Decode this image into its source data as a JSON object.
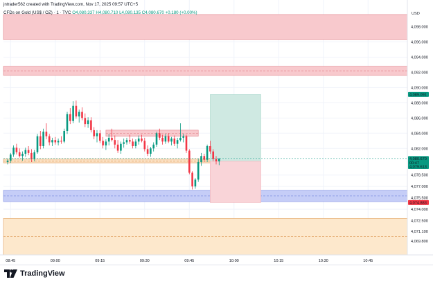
{
  "header": {
    "title": "jntrader562 created with TradingView.com, Nov 17, 2025 09:57 UTC+5"
  },
  "symbol_line": {
    "name": "CFDs on Gold (US$ / OZ) · 1 · TVC",
    "open": "O4,080.337",
    "high": "H4,080.710",
    "low": "L4,080.135",
    "close": "C4,080.670",
    "change": "+0.180 (+0.00%)"
  },
  "footer": {
    "logo_text": "TradingView"
  },
  "colors": {
    "up": "#089981",
    "down": "#f23645",
    "grid": "#f0f3fa",
    "axis_text": "#131722"
  },
  "chart_data": {
    "type": "candlestick",
    "currency": "USD",
    "y_ticks": [
      4098.0,
      4096.0,
      4094.0,
      4092.0,
      4090.0,
      4088.0,
      4086.0,
      4084.0,
      4082.0,
      4078.5,
      4077.0,
      4075.5,
      4074.0,
      4072.5,
      4071.1,
      4069.8
    ],
    "y_tick_labels": [
      "4,098.000",
      "4,096.000",
      "4,094.000",
      "4,092.000",
      "4,090.000",
      "4,088.000",
      "4,086.000",
      "4,084.000",
      "4,082.000",
      "4,078.500",
      "4,077.000",
      "4,075.500",
      "4,074.000",
      "4,072.500",
      "4,071.100",
      "4,069.800"
    ],
    "x_ticks": [
      "08:45",
      "09:00",
      "09:15",
      "09:30",
      "09:45",
      "10:00",
      "10:15",
      "10:30",
      "10:45"
    ],
    "x_start_time": "08:44",
    "ylim": [
      4068.0,
      4100.6
    ],
    "price_labels": [
      {
        "value": "4,089.091",
        "color": "#089981"
      },
      {
        "value": "4,080.670",
        "sub": "00:47",
        "color": "#089981"
      },
      {
        "value": "4,079.613",
        "color": "#089981"
      },
      {
        "value": "4,074.883",
        "color": "#f23645"
      }
    ],
    "zones": [
      {
        "name": "red-supply-zone",
        "top": 4099.6,
        "bottom": 4096.3,
        "color": "#f8c9cd",
        "border": "#e08088",
        "dashed_mid": null
      },
      {
        "name": "red-zone-2",
        "top": 4092.8,
        "bottom": 4091.6,
        "color": "#f8c9cd",
        "border": "#e08088",
        "dashed_mid": 4092.2
      },
      {
        "name": "orange-pivot-zone",
        "top": 4080.6,
        "bottom": 4080.1,
        "color": "#fbe0c2",
        "border": "#e0a060",
        "dashed_mid": 4080.35
      },
      {
        "name": "blue-demand-zone",
        "top": 4076.5,
        "bottom": 4075.0,
        "color": "#c5cdf7",
        "border": "#8090e0",
        "dashed_mid": 4075.75
      },
      {
        "name": "orange-demand-zone",
        "top": 4072.8,
        "bottom": 4068.0,
        "color": "#fde8cc",
        "border": "#e0a060",
        "dashed_mid": 4070.4
      },
      {
        "name": "pink-small-zone",
        "top": 4084.4,
        "bottom": 4083.6,
        "color": "#f8c9cd",
        "border": "#e08088",
        "dashed_mid": 4084.0
      }
    ],
    "position": {
      "entry": 4080.32,
      "target": 4089.091,
      "stop": 4074.883,
      "start_time": "09:52",
      "end_time": "10:09"
    },
    "candles": [
      [
        4080.2,
        4080.6,
        4079.9,
        4080.4
      ],
      [
        4080.4,
        4081.4,
        4080.1,
        4081.2
      ],
      [
        4081.2,
        4082.4,
        4080.9,
        4082.1
      ],
      [
        4082.1,
        4082.6,
        4081.2,
        4081.5
      ],
      [
        4081.5,
        4082.0,
        4080.8,
        4081.0
      ],
      [
        4081.0,
        4081.6,
        4080.4,
        4081.3
      ],
      [
        4081.3,
        4082.1,
        4080.9,
        4081.8
      ],
      [
        4081.8,
        4082.3,
        4081.1,
        4081.4
      ],
      [
        4081.4,
        4081.9,
        4080.2,
        4080.6
      ],
      [
        4080.6,
        4081.8,
        4080.3,
        4081.5
      ],
      [
        4081.5,
        4083.9,
        4081.3,
        4083.6
      ],
      [
        4083.6,
        4084.3,
        4081.9,
        4082.3
      ],
      [
        4082.3,
        4084.6,
        4082.0,
        4084.2
      ],
      [
        4084.2,
        4085.3,
        4083.2,
        4083.6
      ],
      [
        4083.6,
        4083.9,
        4082.4,
        4082.8
      ],
      [
        4082.8,
        4083.4,
        4082.3,
        4083.1
      ],
      [
        4083.1,
        4083.5,
        4082.5,
        4082.8
      ],
      [
        4082.8,
        4083.3,
        4082.4,
        4083.0
      ],
      [
        4083.0,
        4083.6,
        4082.6,
        4082.9
      ],
      [
        4082.9,
        4084.6,
        4082.7,
        4084.3
      ],
      [
        4084.3,
        4086.8,
        4083.9,
        4086.5
      ],
      [
        4086.5,
        4087.3,
        4085.2,
        4085.6
      ],
      [
        4085.6,
        4088.2,
        4085.3,
        4087.6
      ],
      [
        4087.6,
        4088.3,
        4085.9,
        4086.2
      ],
      [
        4086.2,
        4087.1,
        4085.4,
        4086.8
      ],
      [
        4086.8,
        4087.4,
        4085.7,
        4086.0
      ],
      [
        4086.0,
        4086.6,
        4084.8,
        4085.2
      ],
      [
        4085.2,
        4086.1,
        4084.7,
        4085.7
      ],
      [
        4085.7,
        4086.1,
        4084.1,
        4084.4
      ],
      [
        4084.4,
        4084.8,
        4083.2,
        4083.6
      ],
      [
        4083.6,
        4084.4,
        4082.8,
        4084.0
      ],
      [
        4084.0,
        4084.4,
        4082.7,
        4083.0
      ],
      [
        4083.0,
        4083.5,
        4082.0,
        4082.4
      ],
      [
        4082.4,
        4083.2,
        4081.8,
        4082.9
      ],
      [
        4082.9,
        4083.9,
        4082.4,
        4083.4
      ],
      [
        4083.4,
        4084.6,
        4082.9,
        4083.1
      ],
      [
        4083.1,
        4083.7,
        4082.0,
        4082.5
      ],
      [
        4082.5,
        4083.1,
        4081.4,
        4081.7
      ],
      [
        4081.7,
        4082.9,
        4081.3,
        4082.6
      ],
      [
        4082.6,
        4083.3,
        4082.1,
        4082.8
      ],
      [
        4082.8,
        4083.4,
        4082.5,
        4083.1
      ],
      [
        4083.1,
        4083.8,
        4082.6,
        4082.9
      ],
      [
        4082.9,
        4083.3,
        4082.0,
        4082.3
      ],
      [
        4082.3,
        4083.2,
        4082.0,
        4082.9
      ],
      [
        4082.9,
        4083.7,
        4082.5,
        4083.3
      ],
      [
        4083.3,
        4083.8,
        4082.8,
        4083.0
      ],
      [
        4083.0,
        4083.4,
        4081.6,
        4081.9
      ],
      [
        4081.9,
        4082.4,
        4081.0,
        4081.3
      ],
      [
        4081.3,
        4082.2,
        4080.9,
        4082.0
      ],
      [
        4082.0,
        4082.8,
        4081.6,
        4082.5
      ],
      [
        4082.5,
        4084.2,
        4082.2,
        4084.0
      ],
      [
        4084.0,
        4084.6,
        4083.1,
        4083.4
      ],
      [
        4083.4,
        4083.8,
        4082.5,
        4082.9
      ],
      [
        4082.9,
        4083.9,
        4082.6,
        4083.6
      ],
      [
        4083.6,
        4084.0,
        4082.7,
        4082.9
      ],
      [
        4082.9,
        4083.5,
        4082.4,
        4083.3
      ],
      [
        4083.3,
        4083.7,
        4082.3,
        4082.6
      ],
      [
        4082.6,
        4083.4,
        4082.0,
        4083.1
      ],
      [
        4083.1,
        4085.3,
        4082.9,
        4083.4
      ],
      [
        4083.4,
        4083.9,
        4082.8,
        4083.6
      ],
      [
        4083.6,
        4083.8,
        4081.4,
        4081.7
      ],
      [
        4081.7,
        4081.9,
        4078.6,
        4078.8
      ],
      [
        4078.8,
        4079.0,
        4076.6,
        4077.0
      ],
      [
        4077.0,
        4078.1,
        4076.7,
        4077.9
      ],
      [
        4077.9,
        4080.6,
        4077.6,
        4080.2
      ],
      [
        4080.2,
        4081.4,
        4079.7,
        4081.0
      ],
      [
        4081.0,
        4081.3,
        4080.2,
        4080.5
      ],
      [
        4080.5,
        4082.5,
        4080.2,
        4082.3
      ],
      [
        4082.3,
        4083.0,
        4081.3,
        4081.6
      ],
      [
        4081.6,
        4081.9,
        4080.3,
        4080.6
      ],
      [
        4080.6,
        4081.0,
        4079.9,
        4080.3
      ],
      [
        4080.3,
        4080.7,
        4079.8,
        4080.67
      ]
    ]
  }
}
